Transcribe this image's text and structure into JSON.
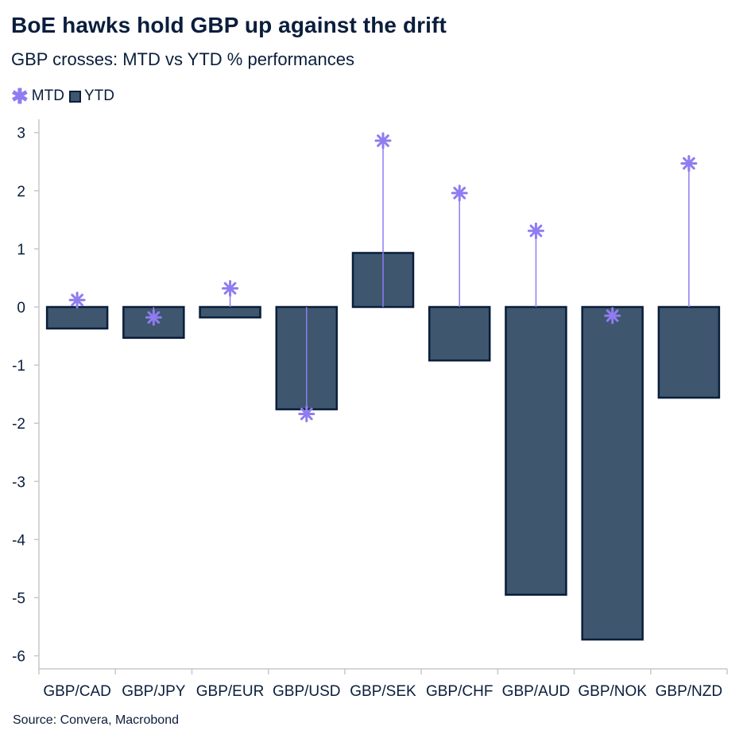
{
  "header": {
    "title": "BoE hawks hold GBP up against the drift",
    "subtitle": "GBP crosses: MTD vs YTD % performances"
  },
  "legend": {
    "mtd_label": "MTD",
    "ytd_label": "YTD"
  },
  "footer": {
    "source": "Source: Convera, Macrobond"
  },
  "colors": {
    "bar_fill": "#3e566e",
    "bar_stroke": "#0a1e3c",
    "marker": "#8f7cf0",
    "axis": "#c8c8c8",
    "text": "#0a1e3c"
  },
  "chart_data": {
    "type": "bar",
    "title": "BoE hawks hold GBP up against the drift",
    "subtitle": "GBP crosses: MTD vs YTD % performances",
    "categories": [
      "GBP/CAD",
      "GBP/JPY",
      "GBP/EUR",
      "GBP/USD",
      "GBP/SEK",
      "GBP/CHF",
      "GBP/AUD",
      "GBP/NOK",
      "GBP/NZD"
    ],
    "series": [
      {
        "name": "MTD",
        "marker": "asterisk",
        "values": [
          0.12,
          -0.18,
          0.32,
          -1.84,
          2.86,
          1.96,
          1.31,
          -0.15,
          2.47
        ]
      },
      {
        "name": "YTD",
        "marker": "bar",
        "values": [
          -0.37,
          -0.53,
          -0.18,
          -1.76,
          0.93,
          -0.92,
          -4.95,
          -5.72,
          -1.56
        ]
      }
    ],
    "yticks": [
      3,
      2,
      1,
      0,
      -1,
      -2,
      -3,
      -4,
      -5,
      -6
    ],
    "ylim": [
      -6.2,
      3.2
    ],
    "grid": false,
    "legend_position": "top-left",
    "xlabel": "",
    "ylabel": ""
  }
}
